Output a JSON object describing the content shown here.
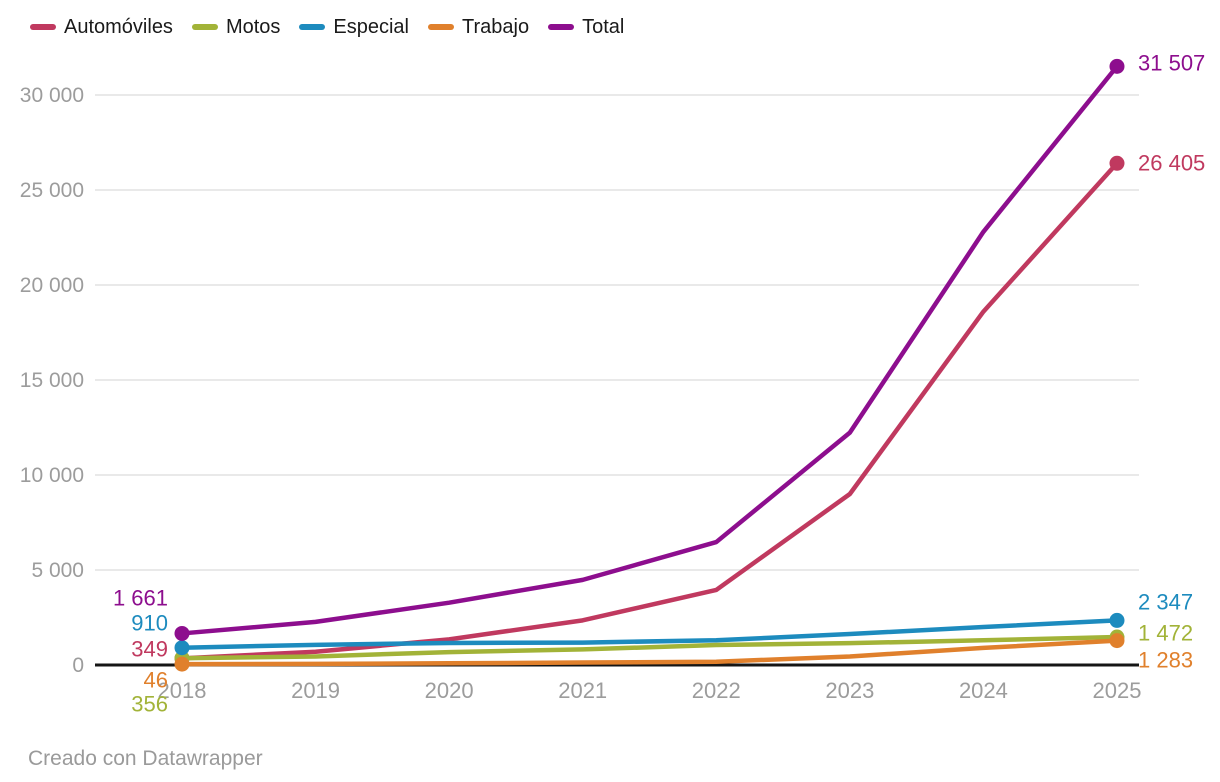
{
  "chart_data": {
    "type": "line",
    "x": [
      2018,
      2019,
      2020,
      2021,
      2022,
      2023,
      2024,
      2025
    ],
    "x_tick_labels": [
      "2018",
      "2019",
      "2020",
      "2021",
      "2022",
      "2023",
      "2024",
      "2025"
    ],
    "series": [
      {
        "name": "Automóviles",
        "color": "#c0395f",
        "values": [
          349,
          700,
          1350,
          2350,
          3950,
          9000,
          18600,
          26405
        ],
        "start_label": "349",
        "end_label": "26 405"
      },
      {
        "name": "Motos",
        "color": "#a2b338",
        "values": [
          356,
          450,
          680,
          820,
          1050,
          1150,
          1300,
          1472
        ],
        "start_label": "356",
        "end_label": "1 472"
      },
      {
        "name": "Especial",
        "color": "#1d8bbe",
        "values": [
          910,
          1060,
          1160,
          1180,
          1300,
          1630,
          2000,
          2347
        ],
        "start_label": "910",
        "end_label": "2 347"
      },
      {
        "name": "Trabajo",
        "color": "#e0802c",
        "values": [
          46,
          60,
          90,
          130,
          170,
          450,
          900,
          1283
        ],
        "start_label": "46",
        "end_label": "1 283"
      },
      {
        "name": "Total",
        "color": "#8d0e8e",
        "values": [
          1661,
          2270,
          3280,
          4480,
          6470,
          12230,
          22800,
          31507
        ],
        "start_label": "1 661",
        "end_label": "31 507"
      }
    ],
    "y_axis": {
      "ticks": [
        0,
        5000,
        10000,
        15000,
        20000,
        25000,
        30000
      ],
      "tick_labels": [
        "0",
        "5 000",
        "10 000",
        "15 000",
        "20 000",
        "25 000",
        "30 000"
      ],
      "range": [
        0,
        31507
      ]
    },
    "legend_position": "top",
    "grid": true,
    "title": "",
    "xlabel": "",
    "ylabel": ""
  },
  "colors": {
    "axis_text": "#9c9c9c",
    "gridline": "#e9e9e9",
    "baseline": "#151515",
    "background": "#ffffff",
    "legend_text": "#1a1a1a"
  },
  "footer": {
    "text": "Creado con Datawrapper"
  }
}
